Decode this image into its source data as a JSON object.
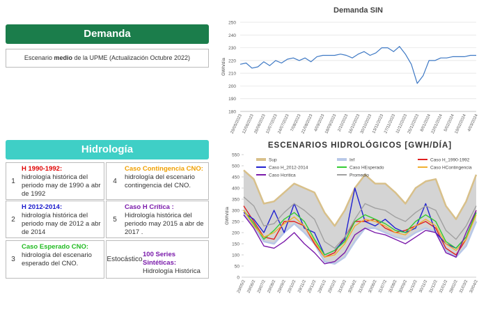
{
  "demanda": {
    "title": "Demanda",
    "scenario": [
      "Escenario ",
      "medio",
      " de la UPME (Actualización Octubre 2022)"
    ]
  },
  "hidrologia": {
    "title": "Hidrología",
    "items": [
      {
        "number": "1",
        "name": "H 1990-1992",
        "colon": ":",
        "desc": "hidrología histórica del periodo may de 1990 a abr de 1992",
        "color": "#e00000"
      },
      {
        "number": "2",
        "name": "H 2012-2014",
        "colon": ":",
        "desc": "hidrología histórica del periodo may de 2012 a abr de 2014",
        "color": "#1a1acc"
      },
      {
        "number": "3",
        "name": "Caso Esperado CNO",
        "colon": ":",
        "desc": "hidrología del escenario esperado del CNO.",
        "color": "#22bb22"
      },
      {
        "number": "4",
        "name": "Caso Contingencia CNO",
        "colon": ":",
        "desc": "hidrología del escenario contingencia del CNO.",
        "color": "#f0a000"
      },
      {
        "number": "5",
        "name": "Caso H Crítica",
        "colon": " :",
        "desc": "Hidrología histórica del periodo may 2015 a abr de 2017 .",
        "color": "#7a1aaa"
      },
      {
        "number": "Estocástico",
        "name": "100 Series Sintéticas",
        "colon": ":",
        "desc": "Hidrología Histórica",
        "color": "#7a1aaa"
      }
    ]
  },
  "chart_data": [
    {
      "type": "line",
      "title": "Demanda SIN",
      "y_label": "GWh/día",
      "color": "#3d78c4",
      "categories": [
        "29/05/2023",
        null,
        "12/06/2023",
        null,
        "26/06/2023",
        null,
        "10/07/2023",
        null,
        "24/07/2023",
        null,
        "7/08/2023",
        null,
        "21/08/2023",
        null,
        "4/09/2023",
        null,
        "18/09/2023",
        null,
        "2/10/2023",
        null,
        "16/10/2023",
        null,
        "30/10/2023",
        null,
        "13/11/2023",
        null,
        "27/11/2023",
        null,
        "11/12/2023",
        null,
        "25/12/2023",
        null,
        "8/01/2024",
        null,
        "22/01/2024",
        null,
        "5/02/2024",
        null,
        "19/02/2024",
        null,
        "4/03/2024"
      ],
      "values": [
        217,
        218,
        214,
        215,
        219,
        216,
        220,
        218,
        221,
        222,
        220,
        222,
        219,
        223,
        224,
        224,
        224,
        225,
        224,
        222,
        225,
        227,
        224,
        226,
        230,
        230,
        227,
        231,
        225,
        217,
        202,
        208,
        220,
        220,
        222,
        222,
        223,
        223,
        223,
        224,
        224
      ],
      "ylim": [
        180,
        250
      ],
      "yticks": [
        180,
        190,
        200,
        210,
        220,
        230,
        240,
        250
      ],
      "grid": true
    },
    {
      "type": "line",
      "title": "ESCENARIOS HIDROLÓGICOS [GWH/DÍA]",
      "y_label": "GWh/día",
      "categories": [
        "29/05/2",
        "29/06/2",
        "29/07/2",
        "29/08/2",
        "29/09/2",
        "29/10/2",
        "29/11/2",
        "29/12/2",
        "29/01/2",
        "29/02/2",
        "31/03/2",
        "30/04/2",
        "31/05/2",
        "30/06/2",
        "31/07/2",
        "31/08/2",
        "30/09/2",
        "31/10/2",
        "30/11/2",
        "31/12/2",
        "31/01/2",
        "28/02/2",
        "31/03/2",
        "30/04/2"
      ],
      "series": [
        {
          "name": "Sup",
          "color": "#d8c08a",
          "area": true,
          "values": [
            480,
            440,
            330,
            340,
            380,
            420,
            400,
            380,
            290,
            230,
            300,
            400,
            460,
            420,
            420,
            380,
            330,
            400,
            430,
            440,
            320,
            260,
            340,
            460
          ]
        },
        {
          "name": "Inf",
          "color": "#b8c8e8",
          "area": true,
          "values": [
            280,
            230,
            160,
            150,
            200,
            240,
            200,
            150,
            70,
            60,
            90,
            160,
            220,
            220,
            200,
            180,
            170,
            200,
            220,
            200,
            120,
            90,
            140,
            250
          ]
        },
        {
          "name": "Caso H_1990-1992",
          "color": "#e02020",
          "values": [
            320,
            250,
            180,
            170,
            250,
            250,
            230,
            150,
            90,
            110,
            180,
            250,
            250,
            260,
            220,
            200,
            210,
            230,
            250,
            220,
            130,
            100,
            170,
            300
          ]
        },
        {
          "name": "Caso H_2012-2014",
          "color": "#2020d0",
          "values": [
            290,
            260,
            200,
            300,
            200,
            330,
            220,
            200,
            100,
            120,
            170,
            400,
            250,
            230,
            260,
            220,
            200,
            220,
            330,
            200,
            150,
            130,
            180,
            290
          ]
        },
        {
          "name": "Caso HEsperado",
          "color": "#33cc33",
          "values": [
            300,
            240,
            170,
            210,
            260,
            290,
            250,
            170,
            100,
            120,
            160,
            250,
            280,
            260,
            240,
            210,
            200,
            250,
            280,
            250,
            160,
            130,
            180,
            290
          ]
        },
        {
          "name": "Caso HContingencia",
          "color": "#f0b030",
          "values": [
            300,
            230,
            180,
            200,
            240,
            270,
            230,
            160,
            90,
            100,
            150,
            230,
            260,
            250,
            230,
            200,
            190,
            230,
            260,
            230,
            150,
            120,
            170,
            280
          ]
        },
        {
          "name": "Caso Hcritica",
          "color": "#7a1aaa",
          "values": [
            280,
            220,
            140,
            130,
            160,
            200,
            150,
            110,
            60,
            70,
            110,
            190,
            220,
            200,
            190,
            170,
            150,
            180,
            210,
            200,
            110,
            90,
            200,
            300
          ]
        },
        {
          "name": "Promedio",
          "color": "#a0a0a0",
          "values": [
            360,
            320,
            230,
            240,
            290,
            330,
            300,
            260,
            160,
            130,
            180,
            260,
            330,
            310,
            300,
            270,
            250,
            290,
            320,
            300,
            210,
            170,
            230,
            320
          ]
        }
      ],
      "ylim": [
        0,
        550
      ],
      "yticks": [
        0,
        50,
        100,
        150,
        200,
        250,
        300,
        350,
        400,
        450,
        500,
        550
      ],
      "grid": false
    }
  ]
}
